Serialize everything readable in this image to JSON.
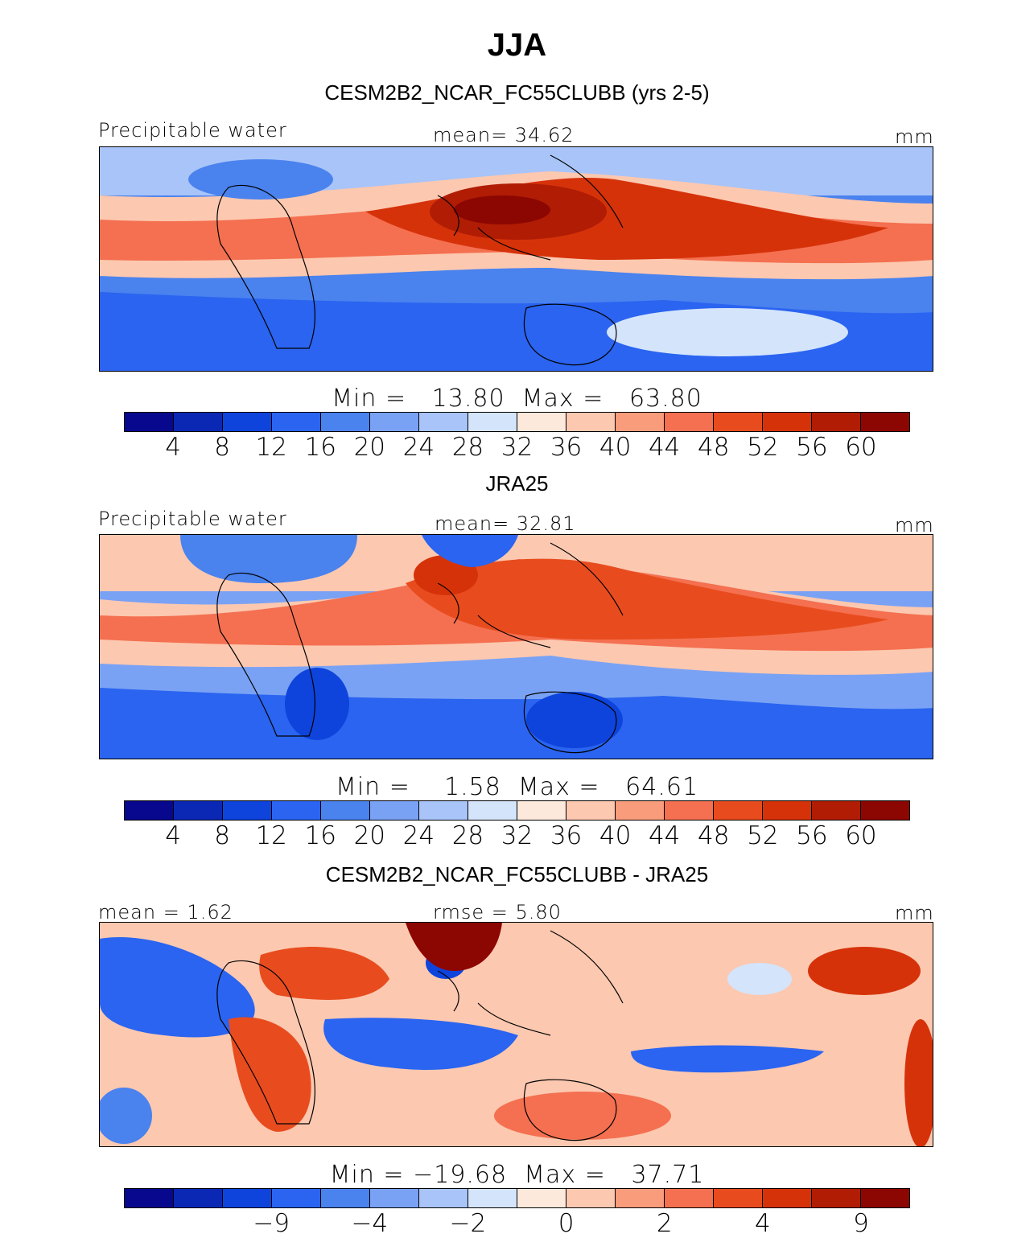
{
  "figure": {
    "title": "JJA"
  },
  "colors": {
    "palette": [
      "#08088f",
      "#0a28b4",
      "#0e44dc",
      "#2a64f0",
      "#4a82ee",
      "#7aa2f4",
      "#a8c4f8",
      "#d4e4fa",
      "#fde8dc",
      "#fcc8b0",
      "#f89c7c",
      "#f47050",
      "#e84c1e",
      "#d6320a",
      "#b01c04",
      "#8c0602"
    ],
    "coast": "#000000"
  },
  "chart_data": [
    {
      "type": "heatmap",
      "title": "CESM2B2_NCAR_FC55CLUBB (yrs 2-5)",
      "left_label": "Precipitable water",
      "center_label": "mean=   34.62",
      "units": "mm",
      "min_max": "Min =   13.80  Max =   63.80",
      "min": 13.8,
      "max": 63.8,
      "mean": 34.62,
      "levels": [
        "4",
        "8",
        "12",
        "16",
        "20",
        "24",
        "28",
        "32",
        "36",
        "40",
        "44",
        "48",
        "52",
        "56",
        "60"
      ]
    },
    {
      "type": "heatmap",
      "title": "JRA25",
      "left_label": "Precipitable water",
      "center_label": "mean=   32.81",
      "units": "mm",
      "min_max": "Min =    1.58  Max =   64.61",
      "min": 1.58,
      "max": 64.61,
      "mean": 32.81,
      "levels": [
        "4",
        "8",
        "12",
        "16",
        "20",
        "24",
        "28",
        "32",
        "36",
        "40",
        "44",
        "48",
        "52",
        "56",
        "60"
      ]
    },
    {
      "type": "heatmap",
      "title": "CESM2B2_NCAR_FC55CLUBB - JRA25",
      "left_label": "mean =    1.62",
      "center_label": "rmse =    5.80",
      "units": "mm",
      "min_max": "Min = −19.68  Max =   37.71",
      "min": -19.68,
      "max": 37.71,
      "mean": 1.62,
      "rmse": 5.8,
      "levels": [
        "−9",
        "−4",
        "−2",
        "0",
        "2",
        "4",
        "9"
      ]
    }
  ]
}
